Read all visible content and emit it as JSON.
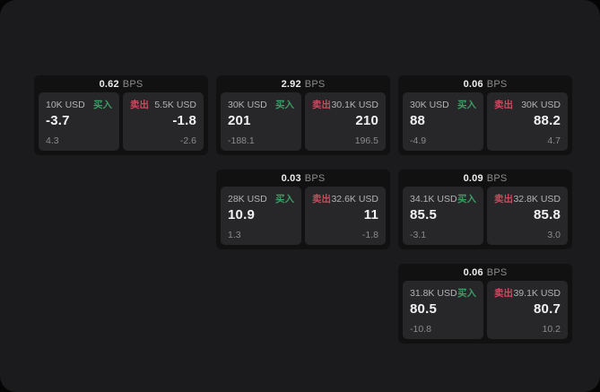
{
  "labels": {
    "bps_unit": "BPS",
    "buy": "买入",
    "sell": "卖出"
  },
  "colors": {
    "page_bg": "#050505",
    "window_bg": "#1b1b1d",
    "card_bg": "#111112",
    "panel_bg": "#27272a",
    "buy_green": "#3d9c64",
    "sell_red": "#c94b5e"
  },
  "cards": [
    {
      "bps": "0.62",
      "buy": {
        "size": "10K USD",
        "price": "-3.7",
        "delta": "4.3"
      },
      "sell": {
        "size": "5.5K USD",
        "price": "-1.8",
        "delta": "-2.6"
      }
    },
    {
      "bps": "2.92",
      "buy": {
        "size": "30K USD",
        "price": "201",
        "delta": "-188.1"
      },
      "sell": {
        "size": "30.1K USD",
        "price": "210",
        "delta": "196.5"
      }
    },
    {
      "bps": "0.06",
      "buy": {
        "size": "30K USD",
        "price": "88",
        "delta": "-4.9"
      },
      "sell": {
        "size": "30K USD",
        "price": "88.2",
        "delta": "4.7"
      }
    },
    {
      "bps": "0.03",
      "buy": {
        "size": "28K USD",
        "price": "10.9",
        "delta": "1.3"
      },
      "sell": {
        "size": "32.6K USD",
        "price": "11",
        "delta": "-1.8"
      }
    },
    {
      "bps": "0.09",
      "buy": {
        "size": "34.1K USD",
        "price": "85.5",
        "delta": "-3.1"
      },
      "sell": {
        "size": "32.8K USD",
        "price": "85.8",
        "delta": "3.0"
      }
    },
    {
      "bps": "0.06",
      "buy": {
        "size": "31.8K USD",
        "price": "80.5",
        "delta": "-10.8"
      },
      "sell": {
        "size": "39.1K USD",
        "price": "80.7",
        "delta": "10.2"
      }
    }
  ]
}
